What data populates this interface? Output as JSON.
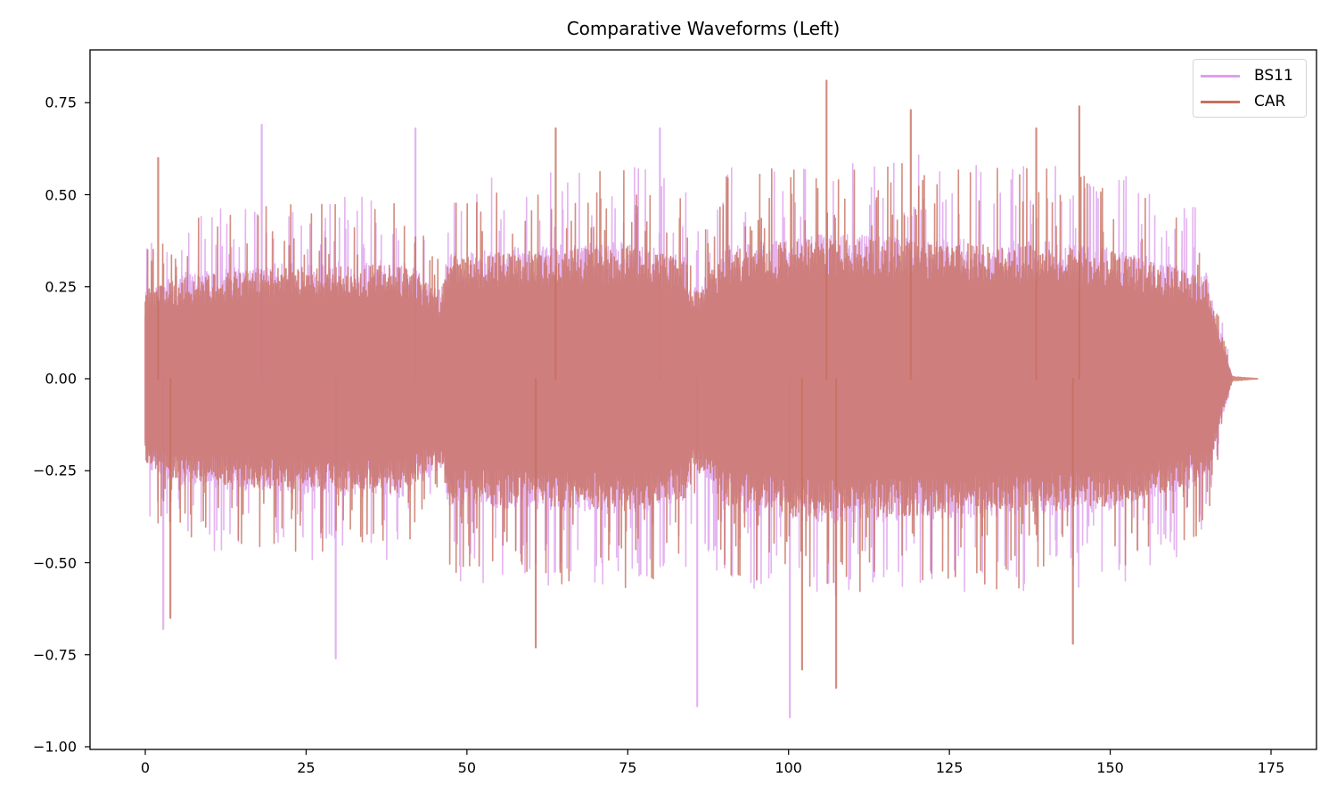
{
  "chart_data": {
    "type": "line",
    "title": "Comparative Waveforms (Left)",
    "xlabel": "",
    "ylabel": "",
    "xlim": [
      -8.7,
      181.8
    ],
    "ylim": [
      -1.0,
      0.89
    ],
    "grid": false,
    "legend_position": "upper right",
    "xticks": [
      0,
      25,
      50,
      75,
      100,
      125,
      150,
      175
    ],
    "xtick_labels": [
      "0",
      "25",
      "50",
      "75",
      "100",
      "125",
      "150",
      "175"
    ],
    "yticks": [
      0.75,
      0.5,
      0.25,
      0.0,
      -0.25,
      -0.5,
      -0.75,
      -1.0
    ],
    "ytick_labels": [
      "0.75",
      "0.50",
      "0.25",
      "0.00",
      "−0.25",
      "−0.50",
      "−0.75",
      "−1.00"
    ],
    "series": [
      {
        "name": "BS11",
        "color": "#dda0ec",
        "alpha": 0.8,
        "duration_s": 169,
        "envelope": {
          "x": [
            0,
            5,
            20,
            40,
            46,
            47,
            60,
            75,
            84,
            85,
            90,
            105,
            120,
            140,
            150,
            160,
            165,
            167,
            169,
            173
          ],
          "amplitude": [
            0.2,
            0.24,
            0.26,
            0.27,
            0.2,
            0.29,
            0.3,
            0.31,
            0.28,
            0.2,
            0.3,
            0.33,
            0.32,
            0.31,
            0.3,
            0.26,
            0.24,
            0.12,
            0.0,
            0.0
          ]
        },
        "peaks": [
          {
            "x": 18.1,
            "y": 0.69
          },
          {
            "x": 42.0,
            "y": 0.68
          },
          {
            "x": 80.0,
            "y": 0.68
          },
          {
            "x": 2.8,
            "y": -0.68
          },
          {
            "x": 29.6,
            "y": -0.76
          },
          {
            "x": 85.8,
            "y": -0.89
          },
          {
            "x": 100.2,
            "y": -0.92
          }
        ]
      },
      {
        "name": "CAR",
        "color": "#c87060",
        "alpha": 0.8,
        "duration_s": 173,
        "envelope": {
          "x": [
            0,
            5,
            20,
            40,
            46,
            47,
            60,
            75,
            84,
            85,
            90,
            105,
            120,
            140,
            150,
            160,
            165,
            167,
            169,
            173
          ],
          "amplitude": [
            0.2,
            0.23,
            0.25,
            0.26,
            0.19,
            0.28,
            0.29,
            0.3,
            0.27,
            0.19,
            0.29,
            0.32,
            0.31,
            0.3,
            0.29,
            0.25,
            0.23,
            0.1,
            0.005,
            0.0
          ]
        },
        "peaks": [
          {
            "x": 2.0,
            "y": 0.6
          },
          {
            "x": 63.8,
            "y": 0.68
          },
          {
            "x": 105.9,
            "y": 0.81
          },
          {
            "x": 119.0,
            "y": 0.73
          },
          {
            "x": 138.5,
            "y": 0.68
          },
          {
            "x": 145.2,
            "y": 0.74
          },
          {
            "x": 3.9,
            "y": -0.65
          },
          {
            "x": 60.7,
            "y": -0.73
          },
          {
            "x": 102.1,
            "y": -0.79
          },
          {
            "x": 107.4,
            "y": -0.84
          },
          {
            "x": 144.2,
            "y": -0.72
          }
        ]
      }
    ]
  }
}
